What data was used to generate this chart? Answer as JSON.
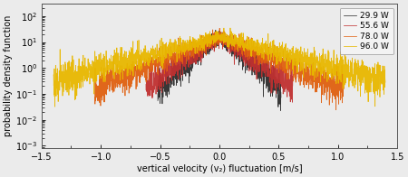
{
  "series": [
    {
      "label": "29.9 W",
      "color": "#2d2d2d",
      "b": 0.115,
      "cutoff": 0.52,
      "seed": 10
    },
    {
      "label": "55.6 W",
      "color": "#c03030",
      "b": 0.145,
      "cutoff": 0.62,
      "seed": 20
    },
    {
      "label": "78.0 W",
      "color": "#e06010",
      "b": 0.23,
      "cutoff": 1.05,
      "seed": 30
    },
    {
      "label": "96.0 W",
      "color": "#e8b800",
      "b": 0.36,
      "cutoff": 1.4,
      "seed": 40
    }
  ],
  "xlim": [
    -1.5,
    1.5
  ],
  "ylim": [
    0.0008,
    300.0
  ],
  "xlabel": "vertical velocity (v₂) fluctuation [m/s]",
  "ylabel": "probability density function",
  "peak_value": 15.0,
  "n_points": 2500
}
